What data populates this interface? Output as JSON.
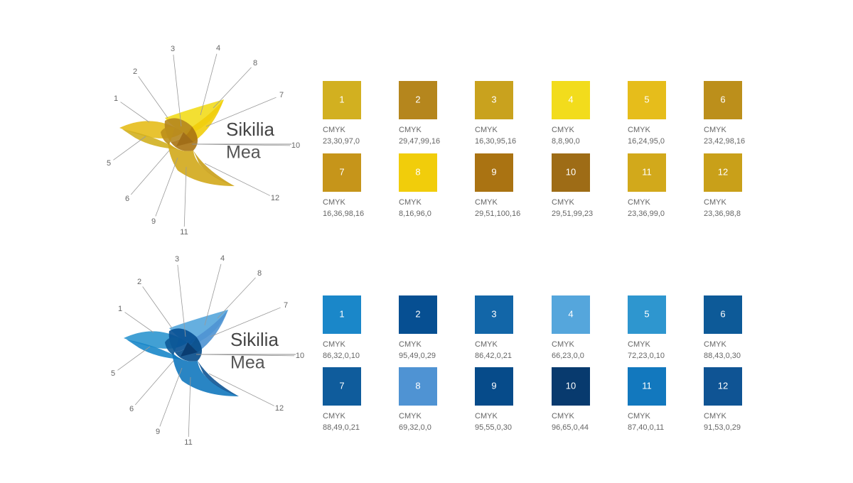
{
  "palettes": [
    {
      "logo": {
        "name": "Sikilia",
        "sub": "Mea",
        "callouts": [
          "1",
          "2",
          "3",
          "4",
          "5",
          "6",
          "7",
          "8",
          "9",
          "10",
          "11",
          "12"
        ]
      },
      "swatches": [
        {
          "number": "1",
          "label": "CMYK",
          "value": "23,30,97,0",
          "color": "#d2b020"
        },
        {
          "number": "2",
          "label": "CMYK",
          "value": "29,47,99,16",
          "color": "#b5861d"
        },
        {
          "number": "3",
          "label": "CMYK",
          "value": "16,30,95,16",
          "color": "#c9a21e"
        },
        {
          "number": "4",
          "label": "CMYK",
          "value": "8,8,90,0",
          "color": "#f2dc1c"
        },
        {
          "number": "5",
          "label": "CMYK",
          "value": "16,24,95,0",
          "color": "#e6bd1b"
        },
        {
          "number": "6",
          "label": "CMYK",
          "value": "23,42,98,16",
          "color": "#bc8f1b"
        },
        {
          "number": "7",
          "label": "CMYK",
          "value": "16,36,98,16",
          "color": "#c6951a"
        },
        {
          "number": "8",
          "label": "CMYK",
          "value": "8,16,96,0",
          "color": "#f1cd0b"
        },
        {
          "number": "9",
          "label": "CMYK",
          "value": "29,51,100,16",
          "color": "#aa7312"
        },
        {
          "number": "10",
          "label": "CMYK",
          "value": "29,51,99,23",
          "color": "#9e6c16"
        },
        {
          "number": "11",
          "label": "CMYK",
          "value": "23,36,99,0",
          "color": "#d2a91b"
        },
        {
          "number": "12",
          "label": "CMYK",
          "value": "23,36,98,8",
          "color": "#c9a019"
        }
      ]
    },
    {
      "logo": {
        "name": "Sikilia",
        "sub": "Mea",
        "callouts": [
          "1",
          "2",
          "3",
          "4",
          "5",
          "6",
          "7",
          "8",
          "9",
          "10",
          "11",
          "12"
        ]
      },
      "swatches": [
        {
          "number": "1",
          "label": "CMYK",
          "value": "86,32,0,10",
          "color": "#1a87c9"
        },
        {
          "number": "2",
          "label": "CMYK",
          "value": "95,49,0,29",
          "color": "#064f92"
        },
        {
          "number": "3",
          "label": "CMYK",
          "value": "86,42,0,21",
          "color": "#1266a8"
        },
        {
          "number": "4",
          "label": "CMYK",
          "value": "66,23,0,0",
          "color": "#55a6dc"
        },
        {
          "number": "5",
          "label": "CMYK",
          "value": "72,23,0,10",
          "color": "#2e96cf"
        },
        {
          "number": "6",
          "label": "CMYK",
          "value": "88,43,0,30",
          "color": "#0d5a98"
        },
        {
          "number": "7",
          "label": "CMYK",
          "value": "88,49,0,21",
          "color": "#0f5c9c"
        },
        {
          "number": "8",
          "label": "CMYK",
          "value": "69,32,0,0",
          "color": "#4f93d3"
        },
        {
          "number": "9",
          "label": "CMYK",
          "value": "95,55,0,30",
          "color": "#064b8a"
        },
        {
          "number": "10",
          "label": "CMYK",
          "value": "96,65,0,44",
          "color": "#083a6e"
        },
        {
          "number": "11",
          "label": "CMYK",
          "value": "87,40,0,11",
          "color": "#1278be"
        },
        {
          "number": "12",
          "label": "CMYK",
          "value": "91,53,0,29",
          "color": "#0f5494"
        }
      ]
    }
  ]
}
